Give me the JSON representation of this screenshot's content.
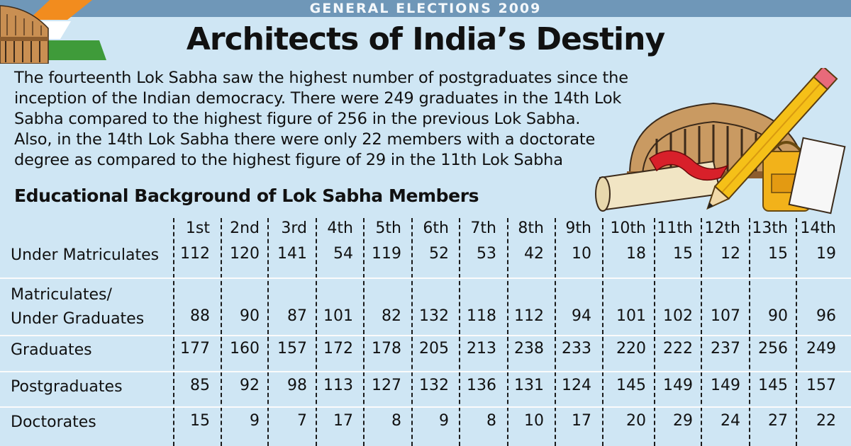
{
  "header": {
    "banner": "GENERAL ELECTIONS 2009",
    "title": "Architects of India’s Destiny"
  },
  "intro_lines": [
    "The fourteenth Lok Sabha saw the highest number of postgraduates since the",
    "inception of the Indian democracy. There were 249 graduates in the 14th Lok",
    "Sabha compared to the highest figure of 256 in the previous Lok Sabha.",
    "Also, in the 14th Lok Sabha there were only 22 members with a doctorate",
    "degree as compared to the highest figure of 29 in the 11th Lok Sabha"
  ],
  "chart_data": {
    "type": "table",
    "title": "Educational Background of Lok Sabha Members",
    "columns": [
      "1st",
      "2nd",
      "3rd",
      "4th",
      "5th",
      "6th",
      "7th",
      "8th",
      "9th",
      "10th",
      "11th",
      "12th",
      "13th",
      "14th"
    ],
    "rows": [
      {
        "label": [
          "Under Matriculates"
        ],
        "values": [
          112,
          120,
          141,
          54,
          119,
          52,
          53,
          42,
          10,
          18,
          15,
          12,
          15,
          19
        ]
      },
      {
        "label": [
          "Matriculates/",
          "Under Graduates"
        ],
        "values": [
          88,
          90,
          87,
          101,
          82,
          132,
          118,
          112,
          94,
          101,
          102,
          107,
          90,
          96
        ]
      },
      {
        "label": [
          "Graduates"
        ],
        "values": [
          177,
          160,
          157,
          172,
          178,
          205,
          213,
          238,
          233,
          220,
          222,
          237,
          256,
          249
        ]
      },
      {
        "label": [
          "Postgraduates"
        ],
        "values": [
          85,
          92,
          98,
          113,
          127,
          132,
          136,
          131,
          124,
          145,
          149,
          149,
          145,
          157
        ]
      },
      {
        "label": [
          "Doctorates"
        ],
        "values": [
          15,
          9,
          7,
          17,
          8,
          9,
          8,
          10,
          17,
          20,
          29,
          24,
          27,
          22
        ]
      }
    ]
  },
  "colors": {
    "background": "#cfe6f4",
    "banner": "#6f97b8",
    "saffron": "#f28c1e",
    "green": "#3f9b3a",
    "pencil": "#f5c018",
    "ribbon": "#d8202a"
  },
  "icons": [
    "parliament-building-icon",
    "indian-flag-icon",
    "pencil-icon",
    "scroll-icon",
    "bag-icon"
  ]
}
